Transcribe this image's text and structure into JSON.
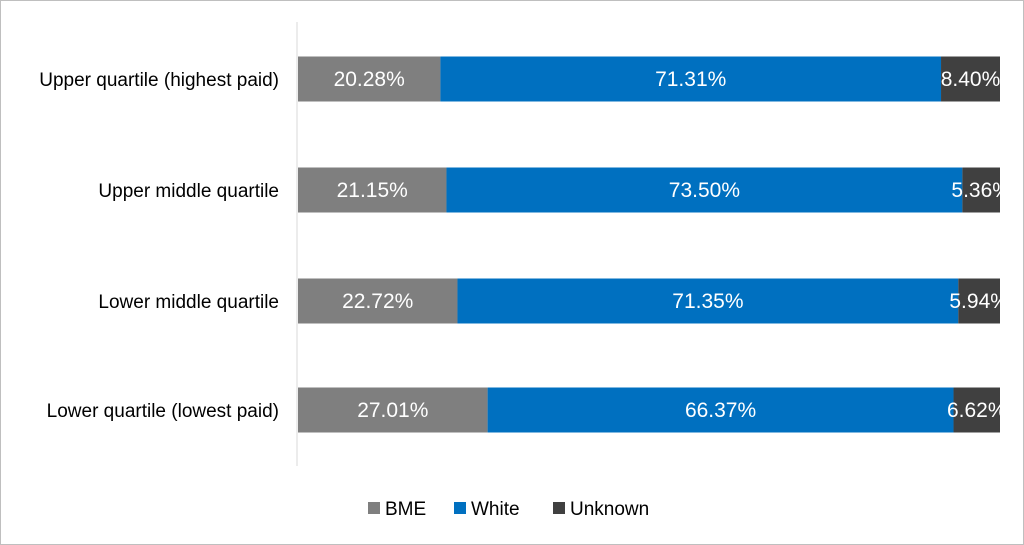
{
  "chart_data": {
    "type": "bar",
    "orientation": "horizontal",
    "stacked": true,
    "normalized": true,
    "categories": [
      "Upper quartile (highest paid)",
      "Upper middle quartile",
      "Lower middle quartile",
      "Lower quartile (lowest paid)"
    ],
    "series": [
      {
        "name": "BME",
        "color": "#7f7f7f",
        "values": [
          20.28,
          21.15,
          22.72,
          27.01
        ],
        "labels": [
          "20.28%",
          "21.15%",
          "22.72%",
          "27.01%"
        ]
      },
      {
        "name": "White",
        "color": "#0070c0",
        "values": [
          71.31,
          73.5,
          71.35,
          66.37
        ],
        "labels": [
          "71.31%",
          "73.50%",
          "71.35%",
          "66.37%"
        ]
      },
      {
        "name": "Unknown",
        "color": "#404040",
        "values": [
          8.4,
          5.36,
          5.94,
          6.62
        ],
        "labels": [
          "8.40%",
          "5.36%",
          "5.94%",
          "6.62%"
        ]
      }
    ],
    "title": "",
    "xlabel": "",
    "ylabel": "",
    "grid": false,
    "legend": "bottom"
  }
}
